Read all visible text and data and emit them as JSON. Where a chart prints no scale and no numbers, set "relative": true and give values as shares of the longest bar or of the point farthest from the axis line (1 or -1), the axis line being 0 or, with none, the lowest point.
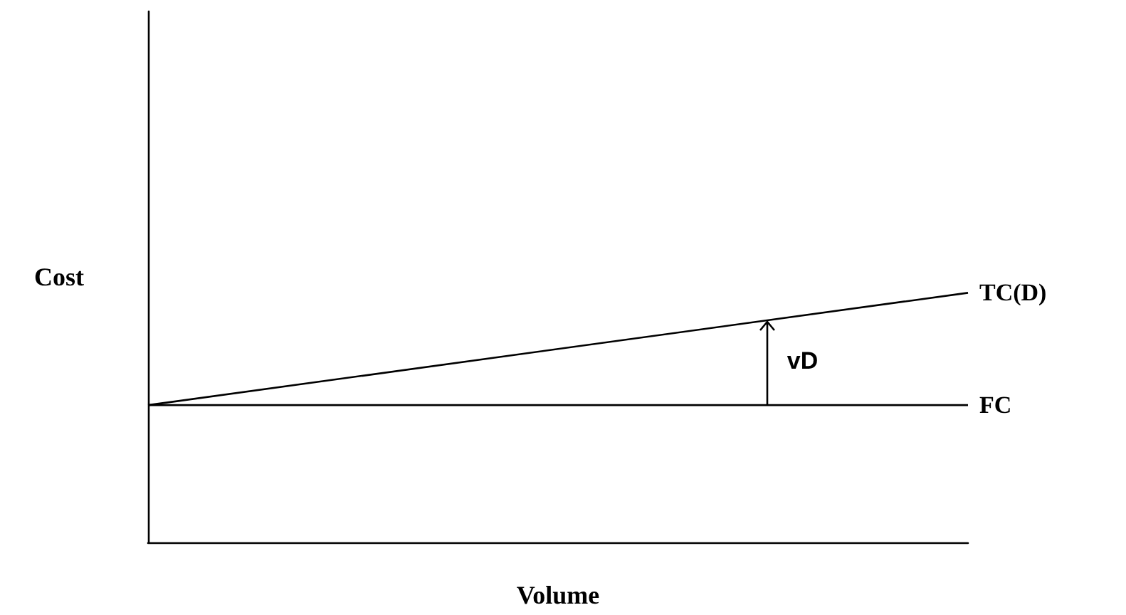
{
  "chart_data": {
    "type": "line",
    "relative": true,
    "xlabel": "Volume",
    "ylabel": "Cost",
    "categories": [
      null,
      null
    ],
    "series": [
      {
        "name": "TC(D)",
        "color": "#000000",
        "values": [
          0.55,
          1
        ]
      },
      {
        "name": "FC",
        "color": "#000000",
        "values": [
          0.55,
          0.55
        ]
      }
    ],
    "annotations": [
      "vD"
    ]
  }
}
